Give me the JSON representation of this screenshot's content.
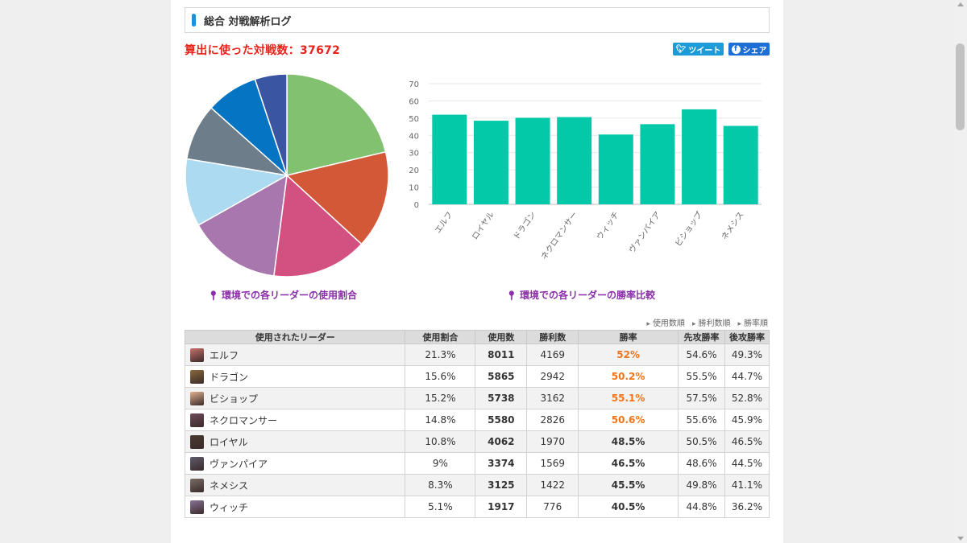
{
  "header": {
    "title": "総合 対戦解析ログ"
  },
  "summary": {
    "battle_count_text": "算出に使った対戦数：37672"
  },
  "share": {
    "tweet": "ツイート",
    "share": "シェア"
  },
  "captions": {
    "pie": "環境での各リーダーの使用割合",
    "bar": "環境での各リーダーの勝率比較"
  },
  "sort_links": [
    "使用数順",
    "勝利数順",
    "勝率順"
  ],
  "chart_data": [
    {
      "type": "pie",
      "categories": [
        "エルフ",
        "ドラゴン",
        "ビショップ",
        "ネクロマンサー",
        "ロイヤル",
        "ヴァンパイア",
        "ネメシス",
        "ウィッチ"
      ],
      "values": [
        21.3,
        15.6,
        15.2,
        14.8,
        10.8,
        9,
        8.3,
        5.1
      ],
      "colors": [
        "#82c170",
        "#d35837",
        "#d35181",
        "#a777ae",
        "#acdaf1",
        "#6e7d8a",
        "#0474c3",
        "#3a55a2"
      ],
      "title": "環境での各リーダーの使用割合"
    },
    {
      "type": "bar",
      "categories": [
        "エルフ",
        "ロイヤル",
        "ドラゴン",
        "ネクロマンサー",
        "ウィッチ",
        "ヴァンパイア",
        "ビショップ",
        "ネメシス"
      ],
      "values": [
        52,
        48.5,
        50.2,
        50.6,
        40.5,
        46.5,
        55.1,
        45.5
      ],
      "ylim": [
        0,
        70
      ],
      "yticks": [
        0,
        10,
        20,
        30,
        40,
        50,
        60,
        70
      ],
      "grid": true,
      "color": "#03c9a9",
      "title": "環境での各リーダーの勝率比較"
    }
  ],
  "table": {
    "headers": [
      "使用されたリーダー",
      "使用割合",
      "使用数",
      "勝利数",
      "勝率",
      "先攻勝率",
      "後攻勝率"
    ],
    "rows": [
      {
        "leader": "エルフ",
        "ratio": "21.3%",
        "uses": "8011",
        "wins": "4169",
        "rate": "52%",
        "first": "54.6%",
        "second": "49.3%",
        "highlight": true,
        "avatar_color": "#c9706a"
      },
      {
        "leader": "ドラゴン",
        "ratio": "15.6%",
        "uses": "5865",
        "wins": "2942",
        "rate": "50.2%",
        "first": "55.5%",
        "second": "44.7%",
        "highlight": true,
        "avatar_color": "#8a6a3b"
      },
      {
        "leader": "ビショップ",
        "ratio": "15.2%",
        "uses": "5738",
        "wins": "3162",
        "rate": "55.1%",
        "first": "57.5%",
        "second": "52.8%",
        "highlight": true,
        "avatar_color": "#e0b08e"
      },
      {
        "leader": "ネクロマンサー",
        "ratio": "14.8%",
        "uses": "5580",
        "wins": "2826",
        "rate": "50.6%",
        "first": "55.6%",
        "second": "45.9%",
        "highlight": true,
        "avatar_color": "#6d4a5a"
      },
      {
        "leader": "ロイヤル",
        "ratio": "10.8%",
        "uses": "4062",
        "wins": "1970",
        "rate": "48.5%",
        "first": "50.5%",
        "second": "46.5%",
        "highlight": false,
        "avatar_color": "#4b3a2e"
      },
      {
        "leader": "ヴァンパイア",
        "ratio": "9%",
        "uses": "3374",
        "wins": "1569",
        "rate": "46.5%",
        "first": "48.6%",
        "second": "44.5%",
        "highlight": false,
        "avatar_color": "#5f5a6a"
      },
      {
        "leader": "ネメシス",
        "ratio": "8.3%",
        "uses": "3125",
        "wins": "1422",
        "rate": "45.5%",
        "first": "49.8%",
        "second": "41.1%",
        "highlight": false,
        "avatar_color": "#7a6d66"
      },
      {
        "leader": "ウィッチ",
        "ratio": "5.1%",
        "uses": "1917",
        "wins": "776",
        "rate": "40.5%",
        "first": "44.8%",
        "second": "36.2%",
        "highlight": false,
        "avatar_color": "#8a7397"
      }
    ]
  }
}
